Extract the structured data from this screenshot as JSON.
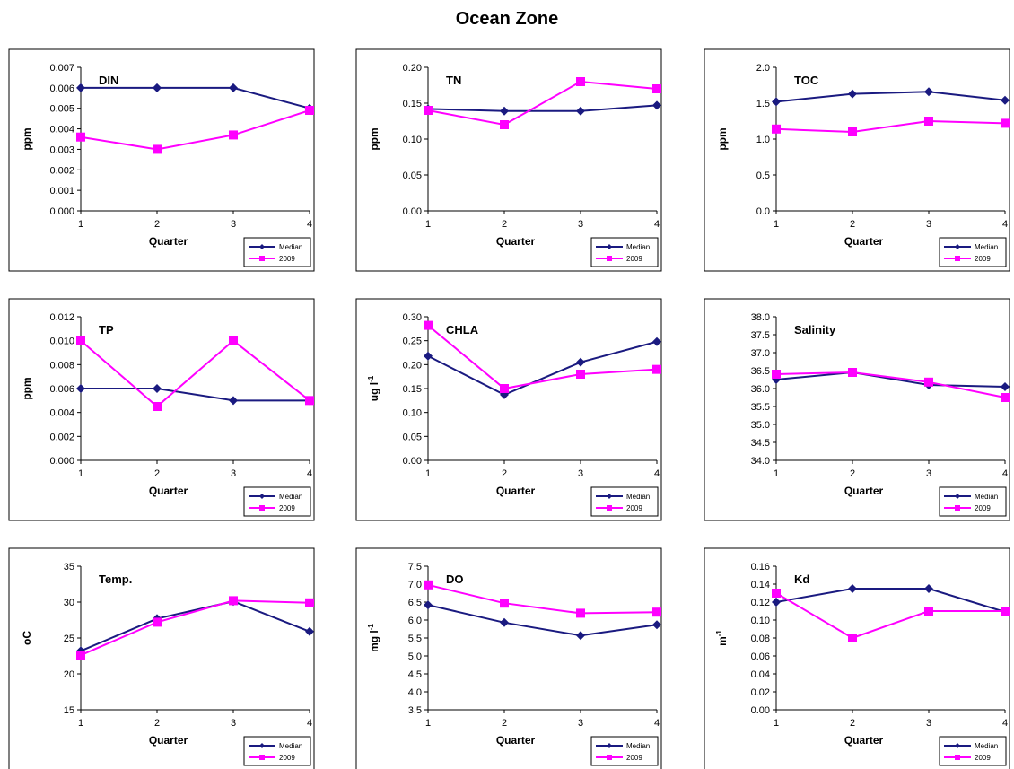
{
  "page_title": "Ocean Zone",
  "colors": {
    "median": "#1a1a80",
    "year2009": "#ff00ff",
    "frame": "#000000",
    "background": "#ffffff"
  },
  "chart_data": [
    {
      "type": "line",
      "title": "DIN",
      "xlabel": "Quarter",
      "ylabel": "ppm",
      "ylabel_sup": "",
      "categories": [
        "1",
        "2",
        "3",
        "4"
      ],
      "ylim": [
        0,
        0.007
      ],
      "yticks": [
        0,
        0.001,
        0.002,
        0.003,
        0.004,
        0.005,
        0.006,
        0.007
      ],
      "ydec": 3,
      "legend": "bottom-right",
      "series": [
        {
          "name": "Median",
          "values": [
            0.006,
            0.006,
            0.006,
            0.005
          ]
        },
        {
          "name": "2009",
          "values": [
            0.0036,
            0.003,
            0.0037,
            0.0049
          ]
        }
      ]
    },
    {
      "type": "line",
      "title": "TN",
      "xlabel": "Quarter",
      "ylabel": "ppm",
      "ylabel_sup": "",
      "categories": [
        "1",
        "2",
        "3",
        "4"
      ],
      "ylim": [
        0,
        0.2
      ],
      "yticks": [
        0,
        0.05,
        0.1,
        0.15,
        0.2
      ],
      "ydec": 2,
      "legend": "bottom-right",
      "series": [
        {
          "name": "Median",
          "values": [
            0.142,
            0.139,
            0.139,
            0.147
          ]
        },
        {
          "name": "2009",
          "values": [
            0.14,
            0.12,
            0.18,
            0.17
          ]
        }
      ]
    },
    {
      "type": "line",
      "title": "TOC",
      "xlabel": "Quarter",
      "ylabel": "ppm",
      "ylabel_sup": "",
      "categories": [
        "1",
        "2",
        "3",
        "4"
      ],
      "ylim": [
        0,
        2
      ],
      "yticks": [
        0,
        0.5,
        1,
        1.5,
        2
      ],
      "ydec": 1,
      "legend": "bottom-right",
      "series": [
        {
          "name": "Median",
          "values": [
            1.52,
            1.63,
            1.66,
            1.54
          ]
        },
        {
          "name": "2009",
          "values": [
            1.14,
            1.1,
            1.25,
            1.22
          ]
        }
      ]
    },
    {
      "type": "line",
      "title": "TP",
      "xlabel": "Quarter",
      "ylabel": "ppm",
      "ylabel_sup": "",
      "categories": [
        "1",
        "2",
        "3",
        "4"
      ],
      "ylim": [
        0,
        0.012
      ],
      "yticks": [
        0,
        0.002,
        0.004,
        0.006,
        0.008,
        0.01,
        0.012
      ],
      "ydec": 3,
      "legend": "bottom-right",
      "series": [
        {
          "name": "Median",
          "values": [
            0.006,
            0.006,
            0.005,
            0.005
          ]
        },
        {
          "name": "2009",
          "values": [
            0.01,
            0.0045,
            0.01,
            0.005
          ]
        }
      ]
    },
    {
      "type": "line",
      "title": "CHLA",
      "xlabel": "Quarter",
      "ylabel": "ug l",
      "ylabel_sup": "-1",
      "categories": [
        "1",
        "2",
        "3",
        "4"
      ],
      "ylim": [
        0,
        0.3
      ],
      "yticks": [
        0,
        0.05,
        0.1,
        0.15,
        0.2,
        0.25,
        0.3
      ],
      "ydec": 2,
      "legend": "bottom-right",
      "series": [
        {
          "name": "Median",
          "values": [
            0.218,
            0.137,
            0.205,
            0.248
          ]
        },
        {
          "name": "2009",
          "values": [
            0.282,
            0.15,
            0.18,
            0.19
          ]
        }
      ]
    },
    {
      "type": "line",
      "title": "Salinity",
      "xlabel": "Quarter",
      "ylabel": "",
      "ylabel_sup": "",
      "categories": [
        "1",
        "2",
        "3",
        "4"
      ],
      "ylim": [
        34,
        38
      ],
      "yticks": [
        34,
        34.5,
        35,
        35.5,
        36,
        36.5,
        37,
        37.5,
        38
      ],
      "ydec": 1,
      "legend": "bottom-right",
      "series": [
        {
          "name": "Median",
          "values": [
            36.25,
            36.45,
            36.1,
            36.05
          ]
        },
        {
          "name": "2009",
          "values": [
            36.4,
            36.45,
            36.18,
            35.75
          ]
        }
      ]
    },
    {
      "type": "line",
      "title": "Temp.",
      "xlabel": "Quarter",
      "ylabel": "oC",
      "ylabel_sup": "",
      "categories": [
        "1",
        "2",
        "3",
        "4"
      ],
      "ylim": [
        15,
        35
      ],
      "yticks": [
        15,
        20,
        25,
        30,
        35
      ],
      "ydec": 0,
      "legend": "bottom-right",
      "series": [
        {
          "name": "Median",
          "values": [
            23.2,
            27.7,
            30.1,
            25.9
          ]
        },
        {
          "name": "2009",
          "values": [
            22.6,
            27.2,
            30.2,
            29.9
          ]
        }
      ]
    },
    {
      "type": "line",
      "title": "DO",
      "xlabel": "Quarter",
      "ylabel": "mg l",
      "ylabel_sup": "-1",
      "categories": [
        "1",
        "2",
        "3",
        "4"
      ],
      "ylim": [
        3.5,
        7.5
      ],
      "yticks": [
        3.5,
        4,
        4.5,
        5,
        5.5,
        6,
        6.5,
        7,
        7.5
      ],
      "ydec": 1,
      "legend": "bottom-right",
      "series": [
        {
          "name": "Median",
          "values": [
            6.42,
            5.93,
            5.57,
            5.87
          ]
        },
        {
          "name": "2009",
          "values": [
            6.98,
            6.47,
            6.19,
            6.22
          ]
        }
      ]
    },
    {
      "type": "line",
      "title": "Kd",
      "xlabel": "Quarter",
      "ylabel": "m",
      "ylabel_sup": "-1",
      "categories": [
        "1",
        "2",
        "3",
        "4"
      ],
      "ylim": [
        0,
        0.16
      ],
      "yticks": [
        0,
        0.02,
        0.04,
        0.06,
        0.08,
        0.1,
        0.12,
        0.14,
        0.16
      ],
      "ydec": 2,
      "legend": "bottom-right",
      "series": [
        {
          "name": "Median",
          "values": [
            0.12,
            0.135,
            0.135,
            0.109
          ]
        },
        {
          "name": "2009",
          "values": [
            0.13,
            0.08,
            0.11,
            0.11
          ]
        }
      ]
    }
  ]
}
